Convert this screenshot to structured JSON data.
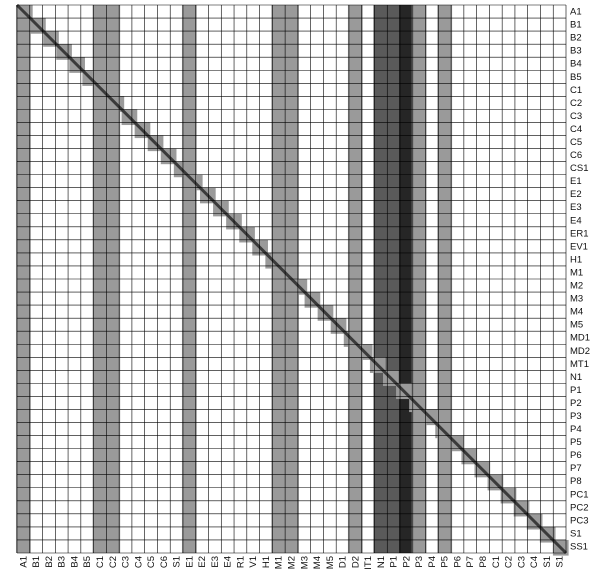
{
  "chart_data": {
    "type": "heatmap",
    "title": "",
    "xlabel": "",
    "ylabel": "",
    "grid": true,
    "legend": "none",
    "x_labels": [
      "A1",
      "B1",
      "B2",
      "B3",
      "B4",
      "B5",
      "C1",
      "C2",
      "C3",
      "C4",
      "C5",
      "C6",
      "S1",
      "E1",
      "E2",
      "E3",
      "E4",
      "R1",
      "V1",
      "H1",
      "M1",
      "M2",
      "M3",
      "M4",
      "M5",
      "D1",
      "D2",
      "IT1",
      "N1",
      "P1",
      "P2",
      "P3",
      "P4",
      "P5",
      "P6",
      "P7",
      "P8",
      "C1",
      "C2",
      "C3",
      "C4",
      "S1",
      "S1"
    ],
    "y_labels": [
      "A1",
      "B1",
      "B2",
      "B3",
      "B4",
      "B5",
      "C1",
      "C2",
      "C3",
      "C4",
      "C5",
      "C6",
      "CS1",
      "E1",
      "E2",
      "E3",
      "E4",
      "ER1",
      "EV1",
      "H1",
      "M1",
      "M2",
      "M3",
      "M4",
      "M5",
      "MD1",
      "MD2",
      "MT1",
      "N1",
      "P1",
      "P2",
      "P3",
      "P4",
      "P5",
      "P6",
      "P7",
      "P8",
      "PC1",
      "PC2",
      "PC3",
      "S1",
      "SS1"
    ],
    "columns": [
      {
        "label": "A1",
        "level": "medium"
      },
      {
        "label": "C1",
        "level": "medium"
      },
      {
        "label": "E1",
        "level": "medium"
      },
      {
        "label": "M1",
        "level": "medium"
      },
      {
        "label": "M2",
        "level": "medium"
      },
      {
        "label": "D2",
        "level": "medium"
      },
      {
        "label": "N1",
        "level": "dark"
      },
      {
        "label": "P1",
        "level": "dark"
      },
      {
        "label": "P2",
        "level": "very dark"
      },
      {
        "label": "P3",
        "level": "medium"
      },
      {
        "label": "P5",
        "level": "medium"
      },
      {
        "label": "C2",
        "level": "medium"
      }
    ],
    "diagonal": {
      "from": "A1",
      "to": "SS1",
      "description": "dark diagonal band with blocks along it"
    },
    "colors": {
      "medium": "#9a9a9a",
      "dark": "#5a5a5a",
      "very_dark": "#262626",
      "diagonal": "#3a3a3a",
      "grid": "#000000",
      "background": "#ffffff"
    }
  }
}
